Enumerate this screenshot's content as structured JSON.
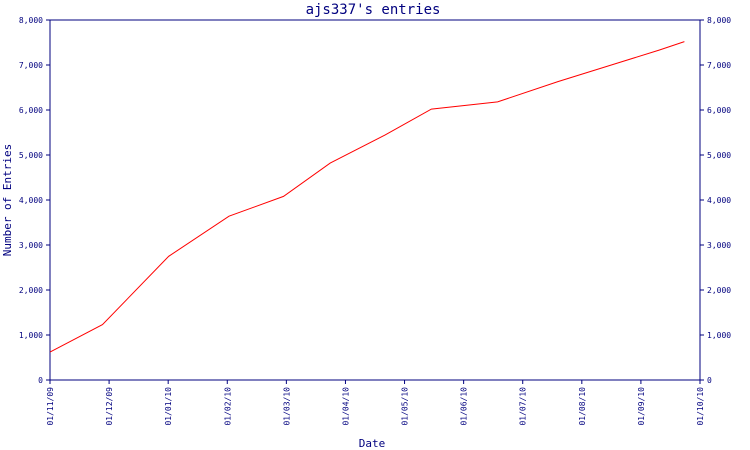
{
  "chart_data": {
    "type": "line",
    "title": "ajs337's entries",
    "xlabel": "Date",
    "ylabel": "Number of Entries",
    "ylim": [
      0,
      8000
    ],
    "y_ticks": [
      0,
      1000,
      2000,
      3000,
      4000,
      5000,
      6000,
      7000,
      8000
    ],
    "y_tick_labels": [
      "0",
      "1,000",
      "2,000",
      "3,000",
      "4,000",
      "5,000",
      "6,000",
      "7,000",
      "8,000"
    ],
    "x_ticks": [
      "01/11/09",
      "01/12/09",
      "01/01/10",
      "01/02/10",
      "01/03/10",
      "01/04/10",
      "01/05/10",
      "01/06/10",
      "01/07/10",
      "01/08/10",
      "01/09/10",
      "01/10/10"
    ],
    "x_range": [
      "2009-11-01",
      "2010-10-01"
    ],
    "grid": false,
    "series": [
      {
        "color": "#ff0000",
        "points": [
          {
            "x": "2009-11-01",
            "y": 620
          },
          {
            "x": "2009-11-28",
            "y": 1230
          },
          {
            "x": "2010-01-01",
            "y": 2750
          },
          {
            "x": "2010-02-01",
            "y": 3640
          },
          {
            "x": "2010-03-01",
            "y": 4080
          },
          {
            "x": "2010-03-25",
            "y": 4820
          },
          {
            "x": "2010-04-22",
            "y": 5440
          },
          {
            "x": "2010-05-16",
            "y": 6020
          },
          {
            "x": "2010-06-19",
            "y": 6180
          },
          {
            "x": "2010-07-20",
            "y": 6630
          },
          {
            "x": "2010-08-15",
            "y": 6980
          },
          {
            "x": "2010-09-10",
            "y": 7330
          },
          {
            "x": "2010-09-23",
            "y": 7520
          }
        ]
      }
    ]
  }
}
